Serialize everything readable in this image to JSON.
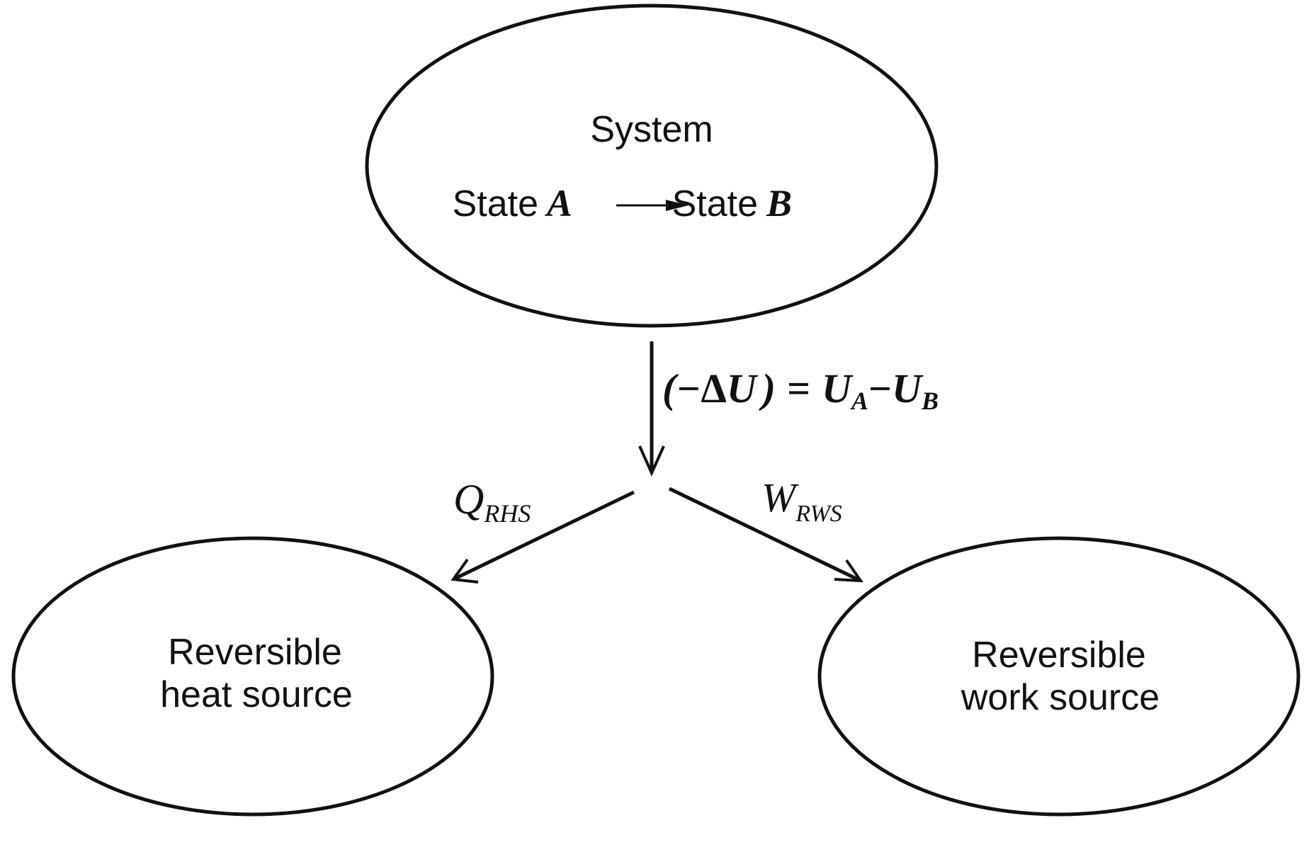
{
  "system": {
    "title": "System",
    "state_a_word": "State",
    "state_a_letter": "A",
    "state_b_word": "State",
    "state_b_letter": "B"
  },
  "energy_change": {
    "open_paren": "(",
    "minus": "−",
    "delta": "Δ",
    "u": "U",
    "close_paren": ")",
    "equals": "=",
    "ua_letter": "U",
    "ua_sub": "A",
    "minus2": "−",
    "ub_letter": "U",
    "ub_sub": "B"
  },
  "heat_flow": {
    "symbol": "Q",
    "subscript": "RHS"
  },
  "work_flow": {
    "symbol": "W",
    "subscript": "RWS"
  },
  "heat_source": {
    "line1": "Reversible",
    "line2": "heat source"
  },
  "work_source": {
    "line1": "Reversible",
    "line2": "work source"
  },
  "colors": {
    "ink": "#111111",
    "background": "#ffffff"
  }
}
